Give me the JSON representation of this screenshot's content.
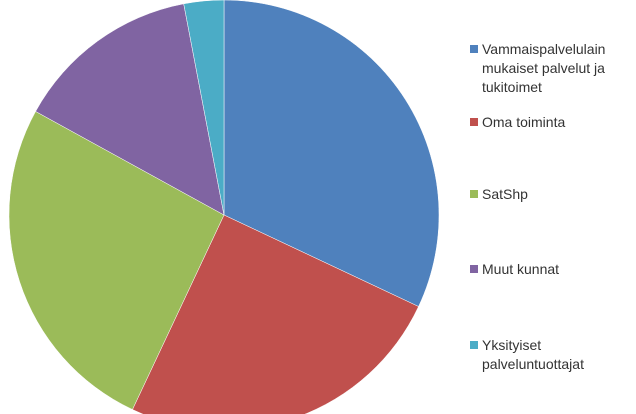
{
  "chart_data": {
    "type": "pie",
    "categories": [
      "Vammaispalvelulain mukaiset palvelut ja tukitoimet",
      "Oma toiminta",
      "SatShp",
      "Muut kunnat",
      "Yksityiset palveluntuottajat"
    ],
    "values": [
      32,
      25,
      26,
      14,
      3
    ],
    "colors": [
      "#4f81bd",
      "#c0504d",
      "#9bbb59",
      "#8064a2",
      "#4bacc6"
    ],
    "legend": "right"
  }
}
